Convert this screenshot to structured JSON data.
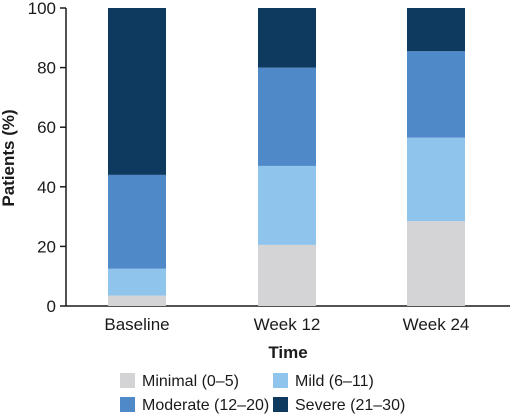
{
  "chart_data": {
    "type": "bar",
    "stacked": true,
    "categories": [
      "Baseline",
      "Week 12",
      "Week 24"
    ],
    "series": [
      {
        "name": "Minimal (0–5)",
        "color": "#d4d4d6",
        "values": [
          3.5,
          20.5,
          28.5
        ]
      },
      {
        "name": "Mild (6–11)",
        "color": "#8fc5ec",
        "values": [
          9,
          26.5,
          28
        ]
      },
      {
        "name": "Moderate (12–20)",
        "color": "#5089c8",
        "values": [
          31.5,
          33,
          29
        ]
      },
      {
        "name": "Severe (21–30)",
        "color": "#0f3a60",
        "values": [
          56,
          20,
          14.5
        ]
      }
    ],
    "xlabel": "Time",
    "ylabel": "Patients (%)",
    "ylim": [
      0,
      100
    ],
    "yticks": [
      0,
      20,
      40,
      60,
      80,
      100
    ],
    "grid": false,
    "legend_position": "bottom"
  }
}
